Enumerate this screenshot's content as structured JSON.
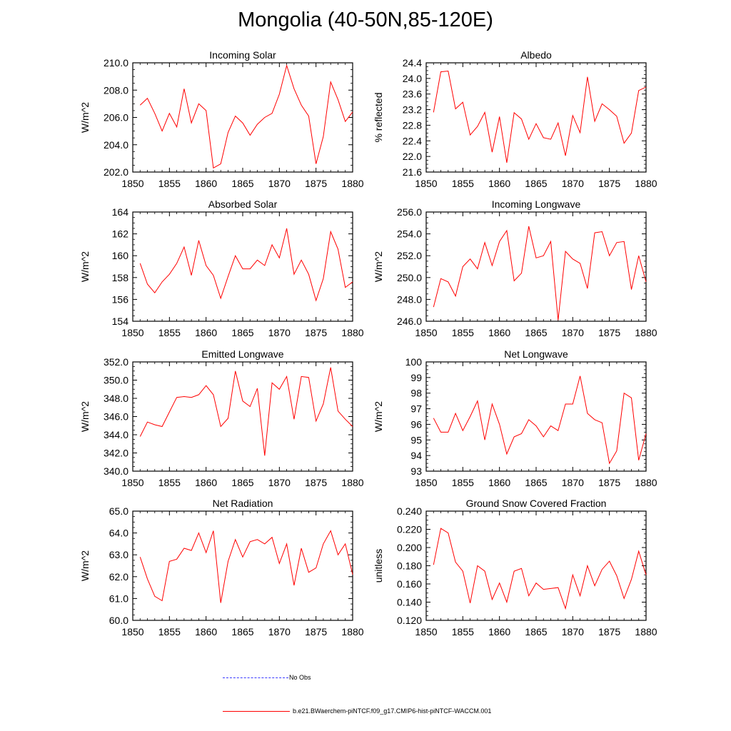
{
  "page": {
    "title": "Mongolia (40-50N,85-120E)"
  },
  "colors": {
    "series": "#ff0000",
    "obs": "#3a3aff",
    "axis": "#000000"
  },
  "legend": {
    "entries": [
      {
        "label": "No Obs",
        "style": "dashed",
        "color": "#3a3aff"
      },
      {
        "label": "b.e21.BWaerchem-piNTCF.f09_g17.CMIP6-hist-piNTCF-WACCM.001",
        "style": "solid",
        "color": "#ff0000"
      }
    ]
  },
  "chart_data": [
    {
      "type": "line",
      "title": "Incoming Solar",
      "ylabel": "W/m^2",
      "xlim": [
        1850,
        1880
      ],
      "ylim": [
        202,
        210
      ],
      "xticks": [
        1850,
        1855,
        1860,
        1865,
        1870,
        1875,
        1880
      ],
      "yticks": [
        202,
        204,
        206,
        208,
        210
      ],
      "ytick_labels": [
        "202.0",
        "204.0",
        "206.0",
        "208.0",
        "210.0"
      ],
      "grid": false,
      "x": [
        1851,
        1852,
        1853,
        1854,
        1855,
        1856,
        1857,
        1858,
        1859,
        1860,
        1861,
        1862,
        1863,
        1864,
        1865,
        1866,
        1867,
        1868,
        1869,
        1870,
        1871,
        1872,
        1873,
        1874,
        1875,
        1876,
        1877,
        1878,
        1879,
        1880
      ],
      "values": [
        206.9,
        207.4,
        206.3,
        205.0,
        206.3,
        205.3,
        208.1,
        205.6,
        207.0,
        206.5,
        202.3,
        202.6,
        204.9,
        206.1,
        205.6,
        204.7,
        205.5,
        206.0,
        206.3,
        207.7,
        209.8,
        208.1,
        206.9,
        206.1,
        202.6,
        204.6,
        208.6,
        207.3,
        205.7,
        206.4
      ]
    },
    {
      "type": "line",
      "title": "Albedo",
      "ylabel": "% reflected",
      "xlim": [
        1850,
        1880
      ],
      "ylim": [
        21.6,
        24.4
      ],
      "xticks": [
        1850,
        1855,
        1860,
        1865,
        1870,
        1875,
        1880
      ],
      "yticks": [
        21.6,
        22.0,
        22.4,
        22.8,
        23.2,
        23.6,
        24.0,
        24.4
      ],
      "ytick_labels": [
        "21.6",
        "22.0",
        "22.4",
        "22.8",
        "23.2",
        "23.6",
        "24.0",
        "24.4"
      ],
      "grid": false,
      "x": [
        1851,
        1852,
        1853,
        1854,
        1855,
        1856,
        1857,
        1858,
        1859,
        1860,
        1861,
        1862,
        1863,
        1864,
        1865,
        1866,
        1867,
        1868,
        1869,
        1870,
        1871,
        1872,
        1873,
        1874,
        1875,
        1876,
        1877,
        1878,
        1879,
        1880
      ],
      "values": [
        23.13,
        24.17,
        24.19,
        23.22,
        23.39,
        22.55,
        22.77,
        23.13,
        22.11,
        23.02,
        21.84,
        23.12,
        22.96,
        22.44,
        22.84,
        22.48,
        22.44,
        22.86,
        22.02,
        23.05,
        22.61,
        24.04,
        22.9,
        23.35,
        23.2,
        23.03,
        22.34,
        22.6,
        23.69,
        23.78
      ]
    },
    {
      "type": "line",
      "title": "Absorbed Solar",
      "ylabel": "W/m^2",
      "xlim": [
        1850,
        1880
      ],
      "ylim": [
        154,
        164
      ],
      "xticks": [
        1850,
        1855,
        1860,
        1865,
        1870,
        1875,
        1880
      ],
      "yticks": [
        154,
        156,
        158,
        160,
        162,
        164
      ],
      "ytick_labels": [
        "154",
        "156",
        "158",
        "160",
        "162",
        "164"
      ],
      "grid": false,
      "x": [
        1851,
        1852,
        1853,
        1854,
        1855,
        1856,
        1857,
        1858,
        1859,
        1860,
        1861,
        1862,
        1863,
        1864,
        1865,
        1866,
        1867,
        1868,
        1869,
        1870,
        1871,
        1872,
        1873,
        1874,
        1875,
        1876,
        1877,
        1878,
        1879,
        1880
      ],
      "values": [
        159.3,
        157.4,
        156.6,
        157.6,
        158.3,
        159.3,
        160.8,
        158.2,
        161.4,
        159.1,
        158.2,
        156.1,
        158.1,
        160.0,
        158.8,
        158.8,
        159.6,
        159.1,
        161.0,
        159.8,
        162.5,
        158.3,
        159.6,
        158.3,
        155.9,
        157.9,
        162.2,
        160.6,
        157.1,
        157.6
      ]
    },
    {
      "type": "line",
      "title": "Incoming Longwave",
      "ylabel": "W/m^2",
      "xlim": [
        1850,
        1880
      ],
      "ylim": [
        246,
        256
      ],
      "xticks": [
        1850,
        1855,
        1860,
        1865,
        1870,
        1875,
        1880
      ],
      "yticks": [
        246,
        248,
        250,
        252,
        254,
        256
      ],
      "ytick_labels": [
        "246.0",
        "248.0",
        "250.0",
        "252.0",
        "254.0",
        "256.0"
      ],
      "grid": false,
      "x": [
        1851,
        1852,
        1853,
        1854,
        1855,
        1856,
        1857,
        1858,
        1859,
        1860,
        1861,
        1862,
        1863,
        1864,
        1865,
        1866,
        1867,
        1868,
        1869,
        1870,
        1871,
        1872,
        1873,
        1874,
        1875,
        1876,
        1877,
        1878,
        1879,
        1880
      ],
      "values": [
        247.3,
        249.9,
        249.6,
        248.3,
        251.0,
        251.7,
        250.8,
        253.2,
        251.1,
        253.3,
        254.3,
        249.7,
        250.4,
        254.7,
        251.8,
        252.0,
        253.3,
        246.1,
        252.4,
        251.7,
        251.3,
        249.0,
        254.1,
        254.2,
        252.0,
        253.2,
        253.3,
        248.9,
        252.0,
        249.6
      ]
    },
    {
      "type": "line",
      "title": "Emitted Longwave",
      "ylabel": "W/m^2",
      "xlim": [
        1850,
        1880
      ],
      "ylim": [
        340,
        352
      ],
      "xticks": [
        1850,
        1855,
        1860,
        1865,
        1870,
        1875,
        1880
      ],
      "yticks": [
        340,
        342,
        344,
        346,
        348,
        350,
        352
      ],
      "ytick_labels": [
        "340.0",
        "342.0",
        "344.0",
        "346.0",
        "348.0",
        "350.0",
        "352.0"
      ],
      "grid": false,
      "x": [
        1851,
        1852,
        1853,
        1854,
        1855,
        1856,
        1857,
        1858,
        1859,
        1860,
        1861,
        1862,
        1863,
        1864,
        1865,
        1866,
        1867,
        1868,
        1869,
        1870,
        1871,
        1872,
        1873,
        1874,
        1875,
        1876,
        1877,
        1878,
        1879,
        1880
      ],
      "values": [
        343.8,
        345.4,
        345.1,
        344.9,
        346.5,
        348.1,
        348.2,
        348.1,
        348.4,
        349.4,
        348.4,
        344.9,
        345.8,
        351.0,
        347.7,
        347.1,
        349.1,
        341.7,
        349.7,
        349.0,
        350.4,
        345.7,
        350.4,
        350.3,
        345.5,
        347.4,
        351.4,
        346.6,
        345.7,
        344.9
      ]
    },
    {
      "type": "line",
      "title": "Net Longwave",
      "ylabel": "W/m^2",
      "xlim": [
        1850,
        1880
      ],
      "ylim": [
        93,
        100
      ],
      "xticks": [
        1850,
        1855,
        1860,
        1865,
        1870,
        1875,
        1880
      ],
      "yticks": [
        93,
        94,
        95,
        96,
        97,
        98,
        99,
        100
      ],
      "ytick_labels": [
        "93",
        "94",
        "95",
        "96",
        "97",
        "98",
        "99",
        "100"
      ],
      "grid": false,
      "x": [
        1851,
        1852,
        1853,
        1854,
        1855,
        1856,
        1857,
        1858,
        1859,
        1860,
        1861,
        1862,
        1863,
        1864,
        1865,
        1866,
        1867,
        1868,
        1869,
        1870,
        1871,
        1872,
        1873,
        1874,
        1875,
        1876,
        1877,
        1878,
        1879,
        1880
      ],
      "values": [
        96.4,
        95.5,
        95.5,
        96.7,
        95.6,
        96.5,
        97.5,
        95.0,
        97.3,
        96.0,
        94.1,
        95.2,
        95.4,
        96.3,
        95.9,
        95.2,
        95.9,
        95.6,
        97.3,
        97.3,
        99.1,
        96.7,
        96.3,
        96.1,
        93.5,
        94.3,
        98.0,
        97.7,
        93.7,
        95.4
      ]
    },
    {
      "type": "line",
      "title": "Net Radiation",
      "ylabel": "W/m^2",
      "xlim": [
        1850,
        1880
      ],
      "ylim": [
        60,
        65
      ],
      "xticks": [
        1850,
        1855,
        1860,
        1865,
        1870,
        1875,
        1880
      ],
      "yticks": [
        60,
        61,
        62,
        63,
        64,
        65
      ],
      "ytick_labels": [
        "60.0",
        "61.0",
        "62.0",
        "63.0",
        "64.0",
        "65.0"
      ],
      "grid": false,
      "x": [
        1851,
        1852,
        1853,
        1854,
        1855,
        1856,
        1857,
        1858,
        1859,
        1860,
        1861,
        1862,
        1863,
        1864,
        1865,
        1866,
        1867,
        1868,
        1869,
        1870,
        1871,
        1872,
        1873,
        1874,
        1875,
        1876,
        1877,
        1878,
        1879,
        1880
      ],
      "values": [
        62.9,
        61.9,
        61.1,
        60.9,
        62.7,
        62.8,
        63.3,
        63.2,
        64.0,
        63.1,
        64.1,
        60.8,
        62.7,
        63.7,
        62.9,
        63.6,
        63.7,
        63.5,
        63.8,
        62.6,
        63.5,
        61.6,
        63.3,
        62.2,
        62.4,
        63.5,
        64.1,
        63.0,
        63.5,
        62.1
      ]
    },
    {
      "type": "line",
      "title": "Ground Snow Covered Fraction",
      "ylabel": "unitless",
      "xlim": [
        1850,
        1880
      ],
      "ylim": [
        0.12,
        0.24
      ],
      "xticks": [
        1850,
        1855,
        1860,
        1865,
        1870,
        1875,
        1880
      ],
      "yticks": [
        0.12,
        0.14,
        0.16,
        0.18,
        0.2,
        0.22,
        0.24
      ],
      "ytick_labels": [
        "0.120",
        "0.140",
        "0.160",
        "0.180",
        "0.200",
        "0.220",
        "0.240"
      ],
      "grid": false,
      "x": [
        1851,
        1852,
        1853,
        1854,
        1855,
        1856,
        1857,
        1858,
        1859,
        1860,
        1861,
        1862,
        1863,
        1864,
        1865,
        1866,
        1867,
        1868,
        1869,
        1870,
        1871,
        1872,
        1873,
        1874,
        1875,
        1876,
        1877,
        1878,
        1879,
        1880
      ],
      "values": [
        0.181,
        0.221,
        0.216,
        0.184,
        0.174,
        0.139,
        0.18,
        0.174,
        0.143,
        0.161,
        0.14,
        0.174,
        0.177,
        0.147,
        0.161,
        0.154,
        0.155,
        0.156,
        0.133,
        0.17,
        0.147,
        0.18,
        0.158,
        0.176,
        0.185,
        0.169,
        0.144,
        0.165,
        0.196,
        0.17
      ]
    }
  ]
}
